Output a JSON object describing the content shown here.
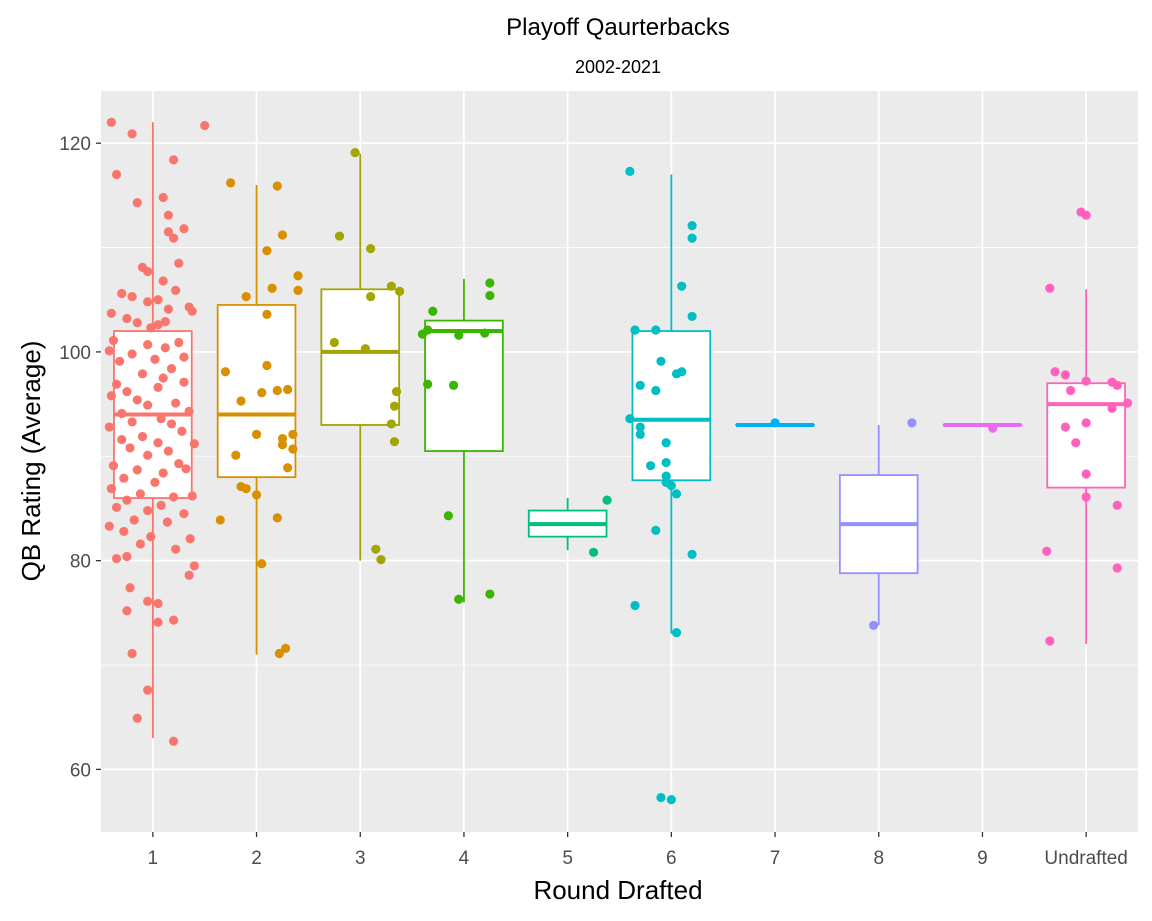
{
  "chart_data": {
    "type": "box",
    "title": "Playoff Qaurterbacks",
    "subtitle": "2002-2021",
    "xlabel": "Round Drafted",
    "ylabel": "QB Rating (Average)",
    "ylim": [
      54,
      125
    ],
    "yticks": [
      60,
      80,
      100,
      120
    ],
    "grid": true,
    "legend": "none",
    "categories": [
      "1",
      "2",
      "3",
      "4",
      "5",
      "6",
      "7",
      "8",
      "9",
      "Undrafted"
    ],
    "colors": [
      "#F8766D",
      "#D89000",
      "#A3A500",
      "#39B600",
      "#00BF7D",
      "#00BFC4",
      "#00B0F6",
      "#9590FF",
      "#E76BF3",
      "#FF62BC"
    ],
    "boxes": [
      {
        "category": "1",
        "q1": 86,
        "median": 94,
        "q3": 102,
        "whisker_low": 63,
        "whisker_high": 122
      },
      {
        "category": "2",
        "q1": 88,
        "median": 94,
        "q3": 104.5,
        "whisker_low": 71,
        "whisker_high": 116
      },
      {
        "category": "3",
        "q1": 93,
        "median": 100,
        "q3": 106,
        "whisker_low": 80,
        "whisker_high": 119
      },
      {
        "category": "4",
        "q1": 90.5,
        "median": 102,
        "q3": 103,
        "whisker_low": 76,
        "whisker_high": 107
      },
      {
        "category": "5",
        "q1": 82.3,
        "median": 83.5,
        "q3": 84.8,
        "whisker_low": 81,
        "whisker_high": 86
      },
      {
        "category": "6",
        "q1": 87.7,
        "median": 93.5,
        "q3": 102,
        "whisker_low": 73,
        "whisker_high": 117
      },
      {
        "category": "7",
        "q1": 93,
        "median": 93,
        "q3": 93,
        "whisker_low": 93,
        "whisker_high": 93
      },
      {
        "category": "8",
        "q1": 78.8,
        "median": 83.5,
        "q3": 88.2,
        "whisker_low": 73.8,
        "whisker_high": 93
      },
      {
        "category": "9",
        "q1": 93,
        "median": 93,
        "q3": 93,
        "whisker_low": 93,
        "whisker_high": 93
      },
      {
        "category": "Undrafted",
        "q1": 87,
        "median": 95,
        "q3": 97,
        "whisker_low": 72,
        "whisker_high": 106
      }
    ],
    "points": [
      {
        "category": "1",
        "values": [
          [
            -0.4,
            122
          ],
          [
            0.5,
            121.7
          ],
          [
            -0.2,
            120.9
          ],
          [
            0.2,
            118.4
          ],
          [
            -0.35,
            117
          ],
          [
            -0.15,
            114.3
          ],
          [
            0.1,
            114.8
          ],
          [
            0.15,
            113.1
          ],
          [
            0.3,
            111.8
          ],
          [
            0.15,
            111.5
          ],
          [
            0.2,
            110.9
          ],
          [
            -0.1,
            108.1
          ],
          [
            0.25,
            108.5
          ],
          [
            -0.05,
            107.7
          ],
          [
            0.1,
            106.8
          ],
          [
            -0.3,
            105.6
          ],
          [
            -0.2,
            105.3
          ],
          [
            0.05,
            105
          ],
          [
            0.22,
            105.9
          ],
          [
            -0.05,
            104.8
          ],
          [
            0.35,
            104.3
          ],
          [
            0.15,
            104.1
          ],
          [
            -0.4,
            103.7
          ],
          [
            -0.25,
            103.2
          ],
          [
            -0.15,
            102.8
          ],
          [
            0.05,
            102.6
          ],
          [
            0.12,
            102.9
          ],
          [
            0.38,
            103.9
          ],
          [
            -0.02,
            102.3
          ],
          [
            -0.38,
            101.1
          ],
          [
            -0.05,
            100.7
          ],
          [
            0.12,
            100.4
          ],
          [
            0.25,
            100.9
          ],
          [
            -0.42,
            100.1
          ],
          [
            -0.2,
            99.8
          ],
          [
            0.3,
            99.5
          ],
          [
            -0.32,
            99.1
          ],
          [
            0.02,
            99.3
          ],
          [
            0.18,
            98.4
          ],
          [
            -0.1,
            97.9
          ],
          [
            -0.35,
            96.9
          ],
          [
            0.1,
            97.5
          ],
          [
            0.3,
            97.1
          ],
          [
            -0.25,
            96.2
          ],
          [
            0.05,
            96.6
          ],
          [
            -0.4,
            95.8
          ],
          [
            -0.15,
            95.4
          ],
          [
            0.22,
            95.1
          ],
          [
            -0.05,
            94.9
          ],
          [
            0.35,
            94.3
          ],
          [
            -0.3,
            94.1
          ],
          [
            0.08,
            93.6
          ],
          [
            -0.2,
            93.3
          ],
          [
            0.18,
            93.1
          ],
          [
            -0.42,
            92.8
          ],
          [
            0.28,
            92.4
          ],
          [
            -0.1,
            91.9
          ],
          [
            -0.3,
            91.6
          ],
          [
            0.05,
            91.3
          ],
          [
            0.4,
            91.2
          ],
          [
            -0.22,
            90.8
          ],
          [
            0.15,
            90.5
          ],
          [
            -0.05,
            90.1
          ],
          [
            -0.38,
            89.1
          ],
          [
            0.25,
            89.3
          ],
          [
            -0.15,
            88.7
          ],
          [
            0.1,
            88.4
          ],
          [
            0.32,
            88.8
          ],
          [
            -0.28,
            87.9
          ],
          [
            0.02,
            87.5
          ],
          [
            -0.4,
            86.9
          ],
          [
            -0.12,
            86.4
          ],
          [
            0.2,
            86.1
          ],
          [
            0.38,
            86.2
          ],
          [
            -0.25,
            85.8
          ],
          [
            0.08,
            85.3
          ],
          [
            -0.35,
            85.1
          ],
          [
            -0.05,
            84.8
          ],
          [
            0.3,
            84.5
          ],
          [
            -0.18,
            83.9
          ],
          [
            0.14,
            83.7
          ],
          [
            -0.42,
            83.3
          ],
          [
            -0.28,
            82.8
          ],
          [
            -0.02,
            82.3
          ],
          [
            0.36,
            82.1
          ],
          [
            -0.12,
            81.6
          ],
          [
            0.22,
            81.1
          ],
          [
            -0.35,
            80.2
          ],
          [
            -0.25,
            80.4
          ],
          [
            0.4,
            79.5
          ],
          [
            -0.22,
            77.4
          ],
          [
            0.35,
            78.6
          ],
          [
            -0.05,
            76.1
          ],
          [
            0.05,
            75.9
          ],
          [
            -0.25,
            75.2
          ],
          [
            0.2,
            74.3
          ],
          [
            0.05,
            74.1
          ],
          [
            -0.2,
            71.1
          ],
          [
            -0.15,
            64.9
          ],
          [
            -0.05,
            67.6
          ],
          [
            0.2,
            62.7
          ]
        ]
      },
      {
        "category": "2",
        "values": [
          [
            -0.25,
            116.2
          ],
          [
            0.2,
            115.9
          ],
          [
            0.25,
            111.2
          ],
          [
            0.1,
            109.7
          ],
          [
            0.4,
            107.3
          ],
          [
            0.15,
            106.1
          ],
          [
            0.4,
            105.9
          ],
          [
            -0.1,
            105.3
          ],
          [
            0.1,
            103.6
          ],
          [
            -0.3,
            98.1
          ],
          [
            0.1,
            98.7
          ],
          [
            0.3,
            96.4
          ],
          [
            0.2,
            96.3
          ],
          [
            0.05,
            96.1
          ],
          [
            -0.15,
            95.3
          ],
          [
            0.35,
            92.1
          ],
          [
            0.25,
            91.7
          ],
          [
            0.0,
            92.1
          ],
          [
            0.25,
            91.1
          ],
          [
            0.35,
            90.7
          ],
          [
            -0.2,
            90.1
          ],
          [
            0.3,
            88.9
          ],
          [
            -0.15,
            87.1
          ],
          [
            -0.1,
            86.9
          ],
          [
            0.2,
            84.1
          ],
          [
            0.0,
            86.3
          ],
          [
            -0.35,
            83.9
          ],
          [
            0.05,
            79.7
          ],
          [
            0.28,
            71.6
          ],
          [
            0.22,
            71.1
          ]
        ]
      },
      {
        "category": "3",
        "values": [
          [
            -0.05,
            119.1
          ],
          [
            -0.2,
            111.1
          ],
          [
            0.1,
            109.9
          ],
          [
            0.3,
            106.3
          ],
          [
            0.38,
            105.8
          ],
          [
            0.1,
            105.3
          ],
          [
            -0.25,
            100.9
          ],
          [
            0.05,
            100.3
          ],
          [
            0.35,
            96.2
          ],
          [
            0.33,
            94.8
          ],
          [
            0.3,
            93.1
          ],
          [
            0.33,
            91.4
          ],
          [
            0.15,
            81.1
          ],
          [
            0.2,
            80.1
          ]
        ]
      },
      {
        "category": "4",
        "values": [
          [
            0.25,
            106.6
          ],
          [
            0.25,
            105.4
          ],
          [
            -0.3,
            103.9
          ],
          [
            -0.35,
            102.1
          ],
          [
            -0.4,
            101.7
          ],
          [
            -0.05,
            101.6
          ],
          [
            0.2,
            101.8
          ],
          [
            -0.35,
            96.9
          ],
          [
            -0.1,
            96.8
          ],
          [
            -0.15,
            84.3
          ],
          [
            -0.05,
            76.3
          ],
          [
            0.25,
            76.8
          ]
        ]
      },
      {
        "category": "5",
        "values": [
          [
            0.38,
            85.8
          ],
          [
            0.25,
            80.8
          ]
        ]
      },
      {
        "category": "6",
        "values": [
          [
            -0.4,
            117.3
          ],
          [
            0.2,
            112.1
          ],
          [
            0.2,
            110.9
          ],
          [
            0.1,
            106.3
          ],
          [
            0.2,
            103.4
          ],
          [
            -0.35,
            102.1
          ],
          [
            -0.15,
            102.1
          ],
          [
            -0.1,
            99.1
          ],
          [
            0.05,
            97.9
          ],
          [
            0.1,
            98.1
          ],
          [
            -0.3,
            96.8
          ],
          [
            -0.15,
            96.3
          ],
          [
            -0.4,
            93.6
          ],
          [
            -0.3,
            92.8
          ],
          [
            -0.3,
            92.1
          ],
          [
            -0.05,
            91.3
          ],
          [
            -0.2,
            89.1
          ],
          [
            -0.05,
            89.4
          ],
          [
            -0.05,
            88.1
          ],
          [
            -0.05,
            87.5
          ],
          [
            0.0,
            87.2
          ],
          [
            0.05,
            86.4
          ],
          [
            -0.15,
            82.9
          ],
          [
            0.2,
            80.6
          ],
          [
            -0.35,
            75.7
          ],
          [
            0.05,
            73.1
          ],
          [
            -0.1,
            57.3
          ],
          [
            0.0,
            57.1
          ]
        ]
      },
      {
        "category": "7",
        "values": [
          [
            0.0,
            93.2
          ]
        ]
      },
      {
        "category": "8",
        "values": [
          [
            0.32,
            93.2
          ],
          [
            -0.05,
            73.8
          ]
        ]
      },
      {
        "category": "9",
        "values": [
          [
            0.1,
            92.7
          ]
        ]
      },
      {
        "category": "Undrafted",
        "values": [
          [
            -0.05,
            113.4
          ],
          [
            0.0,
            113.1
          ],
          [
            -0.35,
            106.1
          ],
          [
            0.0,
            97.2
          ],
          [
            -0.3,
            98.1
          ],
          [
            -0.2,
            97.8
          ],
          [
            0.25,
            97.1
          ],
          [
            0.3,
            96.8
          ],
          [
            -0.15,
            96.3
          ],
          [
            0.4,
            95.1
          ],
          [
            0.25,
            94.6
          ],
          [
            0.0,
            93.2
          ],
          [
            -0.2,
            92.8
          ],
          [
            -0.1,
            91.3
          ],
          [
            0.0,
            88.3
          ],
          [
            0.0,
            86.1
          ],
          [
            0.3,
            85.3
          ],
          [
            -0.38,
            80.9
          ],
          [
            0.3,
            79.3
          ],
          [
            -0.35,
            72.3
          ]
        ]
      }
    ]
  }
}
